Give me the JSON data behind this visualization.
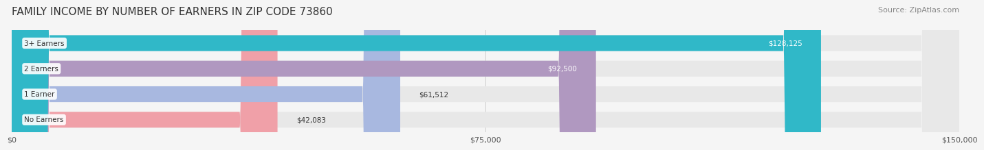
{
  "title": "FAMILY INCOME BY NUMBER OF EARNERS IN ZIP CODE 73860",
  "source": "Source: ZipAtlas.com",
  "categories": [
    "No Earners",
    "1 Earner",
    "2 Earners",
    "3+ Earners"
  ],
  "values": [
    42083,
    61512,
    92500,
    128125
  ],
  "labels": [
    "$42,083",
    "$61,512",
    "$92,500",
    "$128,125"
  ],
  "bar_colors": [
    "#f0a0a8",
    "#a8b8e0",
    "#b098c0",
    "#30b8c8"
  ],
  "bar_bg_color": "#e8e8e8",
  "x_max": 150000,
  "x_ticks": [
    0,
    75000,
    150000
  ],
  "x_tick_labels": [
    "$0",
    "$75,000",
    "$150,000"
  ],
  "background_color": "#f5f5f5",
  "title_fontsize": 11,
  "source_fontsize": 8,
  "label_color_inside": [
    "#333333",
    "#333333",
    "#ffffff",
    "#ffffff"
  ],
  "label_bg_threshold": 80000
}
